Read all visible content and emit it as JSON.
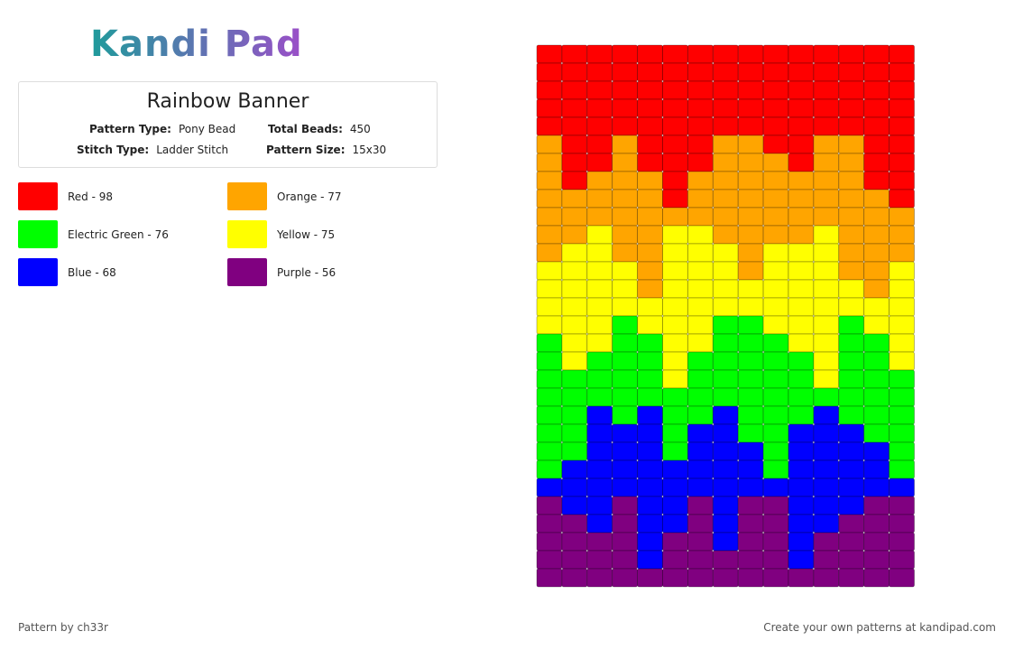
{
  "header": {
    "logo": "Kandi Pad"
  },
  "info": {
    "title": "Rainbow Banner",
    "fields": [
      {
        "label": "Pattern Type:",
        "value": "Pony Bead"
      },
      {
        "label": "Total Beads:",
        "value": "450"
      },
      {
        "label": "Stitch Type:",
        "value": "Ladder Stitch"
      },
      {
        "label": "Pattern Size:",
        "value": "15x30"
      }
    ]
  },
  "legend": [
    {
      "label": "Red - 98",
      "color": "#ff0000"
    },
    {
      "label": "Orange - 77",
      "color": "#ffa500"
    },
    {
      "label": "Electric Green - 76",
      "color": "#00ff00"
    },
    {
      "label": "Yellow - 75",
      "color": "#ffff00"
    },
    {
      "label": "Blue - 68",
      "color": "#0000ff"
    },
    {
      "label": "Purple - 56",
      "color": "#800080"
    }
  ],
  "grid": [
    [
      0,
      0,
      0,
      0,
      0,
      0,
      0,
      0,
      0,
      0,
      0,
      0,
      0,
      0,
      0
    ],
    [
      0,
      0,
      0,
      0,
      0,
      0,
      0,
      0,
      0,
      0,
      0,
      0,
      0,
      0,
      0
    ],
    [
      0,
      0,
      0,
      0,
      0,
      0,
      0,
      0,
      0,
      0,
      0,
      0,
      0,
      0,
      0
    ],
    [
      0,
      0,
      0,
      0,
      0,
      0,
      0,
      0,
      0,
      0,
      0,
      0,
      0,
      0,
      0
    ],
    [
      0,
      0,
      0,
      0,
      0,
      0,
      0,
      0,
      0,
      0,
      0,
      0,
      0,
      0,
      0
    ],
    [
      1,
      0,
      0,
      1,
      0,
      0,
      0,
      1,
      1,
      0,
      0,
      1,
      1,
      0,
      0
    ],
    [
      1,
      0,
      0,
      1,
      0,
      0,
      0,
      1,
      1,
      1,
      0,
      1,
      1,
      0,
      0
    ],
    [
      1,
      0,
      1,
      1,
      1,
      0,
      1,
      1,
      1,
      1,
      1,
      1,
      1,
      0,
      0
    ],
    [
      1,
      1,
      1,
      1,
      1,
      0,
      1,
      1,
      1,
      1,
      1,
      1,
      1,
      1,
      0
    ],
    [
      1,
      1,
      1,
      1,
      1,
      1,
      1,
      1,
      1,
      1,
      1,
      1,
      1,
      1,
      1
    ],
    [
      1,
      1,
      3,
      1,
      1,
      3,
      3,
      1,
      1,
      1,
      1,
      3,
      1,
      1,
      1
    ],
    [
      1,
      3,
      3,
      1,
      1,
      3,
      3,
      3,
      1,
      3,
      3,
      3,
      1,
      1,
      1
    ],
    [
      3,
      3,
      3,
      3,
      1,
      3,
      3,
      3,
      1,
      3,
      3,
      3,
      1,
      1,
      3
    ],
    [
      3,
      3,
      3,
      3,
      1,
      3,
      3,
      3,
      3,
      3,
      3,
      3,
      3,
      1,
      3
    ],
    [
      3,
      3,
      3,
      3,
      3,
      3,
      3,
      3,
      3,
      3,
      3,
      3,
      3,
      3,
      3
    ],
    [
      3,
      3,
      3,
      2,
      3,
      3,
      3,
      2,
      2,
      3,
      3,
      3,
      2,
      3,
      3
    ],
    [
      2,
      3,
      3,
      2,
      2,
      3,
      3,
      2,
      2,
      2,
      3,
      3,
      2,
      2,
      3
    ],
    [
      2,
      3,
      2,
      2,
      2,
      3,
      2,
      2,
      2,
      2,
      2,
      3,
      2,
      2,
      3
    ],
    [
      2,
      2,
      2,
      2,
      2,
      3,
      2,
      2,
      2,
      2,
      2,
      3,
      2,
      2,
      2
    ],
    [
      2,
      2,
      2,
      2,
      2,
      2,
      2,
      2,
      2,
      2,
      2,
      2,
      2,
      2,
      2
    ],
    [
      2,
      2,
      4,
      2,
      4,
      2,
      2,
      4,
      2,
      2,
      2,
      4,
      2,
      2,
      2
    ],
    [
      2,
      2,
      4,
      4,
      4,
      2,
      4,
      4,
      2,
      2,
      4,
      4,
      4,
      2,
      2
    ],
    [
      2,
      2,
      4,
      4,
      4,
      2,
      4,
      4,
      4,
      2,
      4,
      4,
      4,
      4,
      2
    ],
    [
      2,
      4,
      4,
      4,
      4,
      4,
      4,
      4,
      4,
      2,
      4,
      4,
      4,
      4,
      2
    ],
    [
      4,
      4,
      4,
      4,
      4,
      4,
      4,
      4,
      4,
      4,
      4,
      4,
      4,
      4,
      4
    ],
    [
      5,
      4,
      4,
      5,
      4,
      4,
      5,
      4,
      5,
      5,
      4,
      4,
      4,
      5,
      5
    ],
    [
      5,
      5,
      4,
      5,
      4,
      4,
      5,
      4,
      5,
      5,
      4,
      4,
      5,
      5,
      5
    ],
    [
      5,
      5,
      5,
      5,
      4,
      5,
      5,
      4,
      5,
      5,
      4,
      5,
      5,
      5,
      5
    ],
    [
      5,
      5,
      5,
      5,
      4,
      5,
      5,
      5,
      5,
      5,
      4,
      5,
      5,
      5,
      5
    ],
    [
      5,
      5,
      5,
      5,
      5,
      5,
      5,
      5,
      5,
      5,
      5,
      5,
      5,
      5,
      5
    ]
  ],
  "footer": {
    "credit": "Pattern by ch33r",
    "link": "Create your own patterns at kandipad.com"
  }
}
